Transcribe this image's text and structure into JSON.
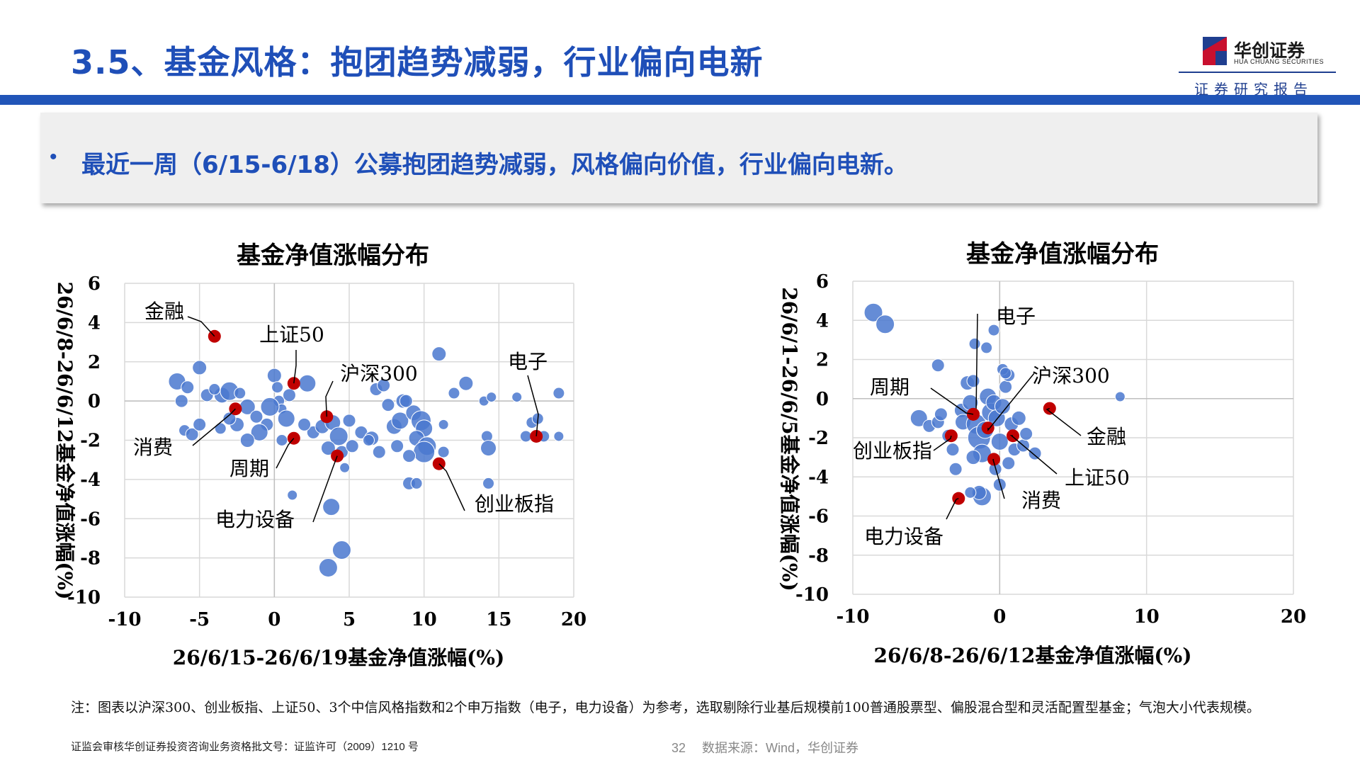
{
  "header": {
    "title": "3.5、基金风格：抱团趋势减弱，行业偏向电新",
    "brand_name": "华创证券",
    "brand_en": "HUA CHUANG SECURITIES",
    "brand_report": "证券研究报告"
  },
  "callout": {
    "bullet": "•",
    "text": "最近一周（6/15-6/18）公募抱团趋势减弱，风格偏向价值，行业偏向电新。"
  },
  "chart_data": [
    {
      "type": "scatter",
      "title": "基金净值涨幅分布",
      "xlabel": "26/6/15-26/6/19基金净值涨幅(%)",
      "ylabel": "26/6/8-26/6/12基金净值涨幅(%)",
      "xlim": [
        -10,
        20
      ],
      "ylim": [
        -10,
        6
      ],
      "xticks": [
        "-10",
        "-5",
        "0",
        "5",
        "10",
        "15",
        "20"
      ],
      "yticks": [
        "6",
        "4",
        "2",
        "0",
        "-2",
        "-4",
        "-6",
        "-8",
        "-10"
      ],
      "grid": true,
      "bubble_color": "#4a78cf",
      "highlight_color": "#c00000",
      "bubbles": [
        [
          -6.5,
          1.0,
          12
        ],
        [
          -5.8,
          0.7,
          9
        ],
        [
          -5.0,
          1.7,
          10
        ],
        [
          -6.2,
          0.0,
          9
        ],
        [
          -4.5,
          0.3,
          9
        ],
        [
          -3.5,
          0.3,
          11
        ],
        [
          -3.0,
          0.5,
          13
        ],
        [
          -4.0,
          0.6,
          8
        ],
        [
          -2.3,
          0.4,
          8
        ],
        [
          -1.8,
          -0.3,
          11
        ],
        [
          -1.2,
          -0.8,
          9
        ],
        [
          -0.5,
          -1.2,
          9
        ],
        [
          0.3,
          0.0,
          8
        ],
        [
          0.5,
          -0.4,
          7
        ],
        [
          0.0,
          1.3,
          10
        ],
        [
          0.2,
          0.7,
          8
        ],
        [
          1.0,
          0.3,
          9
        ],
        [
          2.2,
          0.9,
          12
        ],
        [
          0.8,
          -0.9,
          12
        ],
        [
          -0.3,
          -0.3,
          13
        ],
        [
          -1.0,
          -1.6,
          12
        ],
        [
          -1.8,
          -2.0,
          10
        ],
        [
          -2.5,
          -1.2,
          10
        ],
        [
          -3.0,
          -0.9,
          9
        ],
        [
          -6.0,
          -1.5,
          8
        ],
        [
          -5.5,
          -1.7,
          9
        ],
        [
          -5.0,
          -1.2,
          9
        ],
        [
          -3.6,
          -1.4,
          8
        ],
        [
          0.5,
          -2.0,
          8
        ],
        [
          1.2,
          -4.8,
          7
        ],
        [
          2.6,
          -1.6,
          9
        ],
        [
          3.2,
          -1.3,
          10
        ],
        [
          2.0,
          -1.2,
          9
        ],
        [
          3.9,
          -1.1,
          11
        ],
        [
          4.3,
          -1.8,
          13
        ],
        [
          3.6,
          -2.4,
          10
        ],
        [
          4.5,
          -2.6,
          9
        ],
        [
          5.2,
          -2.3,
          9
        ],
        [
          4.7,
          -3.4,
          7
        ],
        [
          3.8,
          -5.4,
          12
        ],
        [
          4.5,
          -7.6,
          13
        ],
        [
          3.6,
          -8.5,
          13
        ],
        [
          5.0,
          -1.0,
          9
        ],
        [
          5.8,
          -1.6,
          9
        ],
        [
          6.5,
          -1.9,
          10
        ],
        [
          7.0,
          -2.6,
          9
        ],
        [
          8.0,
          -1.3,
          11
        ],
        [
          8.4,
          -1.0,
          12
        ],
        [
          7.6,
          -0.2,
          9
        ],
        [
          8.6,
          0.0,
          10
        ],
        [
          9.3,
          -0.6,
          11
        ],
        [
          9.8,
          -1.0,
          14
        ],
        [
          10.0,
          -1.4,
          12
        ],
        [
          9.5,
          -1.9,
          11
        ],
        [
          10.2,
          -2.3,
          13
        ],
        [
          10.0,
          -2.6,
          15
        ],
        [
          9.0,
          -2.8,
          9
        ],
        [
          8.2,
          -2.3,
          9
        ],
        [
          9.0,
          -4.2,
          9
        ],
        [
          9.5,
          -4.2,
          8
        ],
        [
          11.3,
          -2.6,
          8
        ],
        [
          11.3,
          -1.2,
          7
        ],
        [
          11.0,
          2.4,
          10
        ],
        [
          12.0,
          0.4,
          8
        ],
        [
          12.8,
          0.9,
          10
        ],
        [
          14.2,
          -1.8,
          8
        ],
        [
          14.3,
          -2.4,
          11
        ],
        [
          14.0,
          0.0,
          7
        ],
        [
          14.5,
          0.2,
          7
        ],
        [
          14.3,
          -4.2,
          8
        ],
        [
          16.2,
          0.2,
          7
        ],
        [
          16.8,
          -1.8,
          8
        ],
        [
          17.2,
          -1.1,
          8
        ],
        [
          17.6,
          -0.9,
          8
        ],
        [
          18.0,
          -1.8,
          8
        ],
        [
          19.0,
          0.4,
          8
        ],
        [
          19.0,
          -1.8,
          7
        ],
        [
          6.8,
          0.6,
          9
        ],
        [
          7.3,
          0.8,
          9
        ],
        [
          8.8,
          0.0,
          9
        ],
        [
          6.3,
          -2.0,
          8
        ]
      ],
      "highlights": [
        {
          "label": "金融",
          "x": -4.0,
          "y": 3.3
        },
        {
          "label": "上证50",
          "x": 1.3,
          "y": 0.9
        },
        {
          "label": "沪深300",
          "x": 3.5,
          "y": -0.8
        },
        {
          "label": "电子",
          "x": 17.5,
          "y": -1.8
        },
        {
          "label": "消费",
          "x": -2.6,
          "y": -0.4
        },
        {
          "label": "周期",
          "x": 1.3,
          "y": -1.9
        },
        {
          "label": "电力设备",
          "x": 4.2,
          "y": -2.8
        },
        {
          "label": "创业板指",
          "x": 11.0,
          "y": -3.2
        }
      ]
    },
    {
      "type": "scatter",
      "title": "基金净值涨幅分布",
      "xlabel": "26/6/8-26/6/12基金净值涨幅(%)",
      "ylabel": "26/6/1-26/6/5基金净值涨幅(%)",
      "xlim": [
        -10,
        20
      ],
      "ylim": [
        -10,
        6
      ],
      "xticks": [
        "-10",
        "0",
        "10",
        "20"
      ],
      "yticks": [
        "6",
        "4",
        "2",
        "0",
        "-2",
        "-4",
        "-6",
        "-8",
        "-10"
      ],
      "grid": true,
      "bubble_color": "#4a78cf",
      "highlight_color": "#c00000",
      "bubbles": [
        [
          -8.6,
          4.4,
          13
        ],
        [
          -7.8,
          3.8,
          13
        ],
        [
          -4.2,
          1.7,
          9
        ],
        [
          -5.5,
          -1.0,
          12
        ],
        [
          -4.8,
          -1.4,
          9
        ],
        [
          -4.2,
          -1.2,
          9
        ],
        [
          -4.0,
          -0.8,
          9
        ],
        [
          -3.2,
          -2.6,
          9
        ],
        [
          -3.0,
          -3.6,
          9
        ],
        [
          -2.6,
          -0.6,
          10
        ],
        [
          -2.5,
          -1.2,
          11
        ],
        [
          -2.2,
          0.8,
          10
        ],
        [
          -2.0,
          -0.2,
          11
        ],
        [
          -1.8,
          0.9,
          9
        ],
        [
          -1.6,
          -1.3,
          14
        ],
        [
          -1.4,
          -2.0,
          16
        ],
        [
          -1.2,
          -2.8,
          13
        ],
        [
          -1.0,
          -1.6,
          12
        ],
        [
          -0.8,
          0.1,
          12
        ],
        [
          -0.6,
          -0.7,
          13
        ],
        [
          -0.4,
          -0.2,
          11
        ],
        [
          -0.2,
          -1.0,
          12
        ],
        [
          0.0,
          -2.2,
          12
        ],
        [
          0.2,
          -0.4,
          11
        ],
        [
          0.4,
          0.6,
          9
        ],
        [
          0.6,
          1.2,
          9
        ],
        [
          0.8,
          -1.3,
          10
        ],
        [
          1.0,
          -2.6,
          9
        ],
        [
          1.3,
          -1.0,
          10
        ],
        [
          1.6,
          -2.4,
          9
        ],
        [
          1.8,
          -1.8,
          9
        ],
        [
          2.4,
          -2.8,
          9
        ],
        [
          -1.7,
          2.8,
          8
        ],
        [
          -0.9,
          2.6,
          8
        ],
        [
          -0.4,
          3.5,
          8
        ],
        [
          0.2,
          1.5,
          8
        ],
        [
          0.4,
          1.3,
          8
        ],
        [
          -1.2,
          -5.0,
          13
        ],
        [
          -1.4,
          -4.8,
          10
        ],
        [
          0.0,
          -4.4,
          9
        ],
        [
          -2.0,
          -4.8,
          8
        ],
        [
          -0.3,
          -3.6,
          9
        ],
        [
          0.6,
          -3.3,
          9
        ],
        [
          8.2,
          0.1,
          7
        ],
        [
          -3.5,
          -1.9,
          9
        ],
        [
          -1.8,
          -3.0,
          10
        ]
      ],
      "highlights": [
        {
          "label": "电子",
          "x": -1.8,
          "y": -0.8
        },
        {
          "label": "沪深300",
          "x": -0.8,
          "y": -1.5
        },
        {
          "label": "周期",
          "x": -1.8,
          "y": -0.8
        },
        {
          "label": "金融",
          "x": 3.4,
          "y": -0.5
        },
        {
          "label": "创业板指",
          "x": -3.3,
          "y": -1.9
        },
        {
          "label": "上证50",
          "x": 0.9,
          "y": -1.9
        },
        {
          "label": "消费",
          "x": -0.4,
          "y": -3.1
        },
        {
          "label": "电力设备",
          "x": -2.8,
          "y": -5.1
        }
      ]
    }
  ],
  "note": "注：图表以沪深300、创业板指、上证50、3个中信风格指数和2个申万指数（电子，电力设备）为参考，选取剔除行业基后规模前100普通股票型、偏股混合型和灵活配置型基金；气泡大小代表规模。",
  "footer": {
    "license": "证监会审核华创证券投资咨询业务资格批文号：证监许可（2009）1210 号",
    "page": "32",
    "source": "数据来源：Wind，华创证券"
  }
}
